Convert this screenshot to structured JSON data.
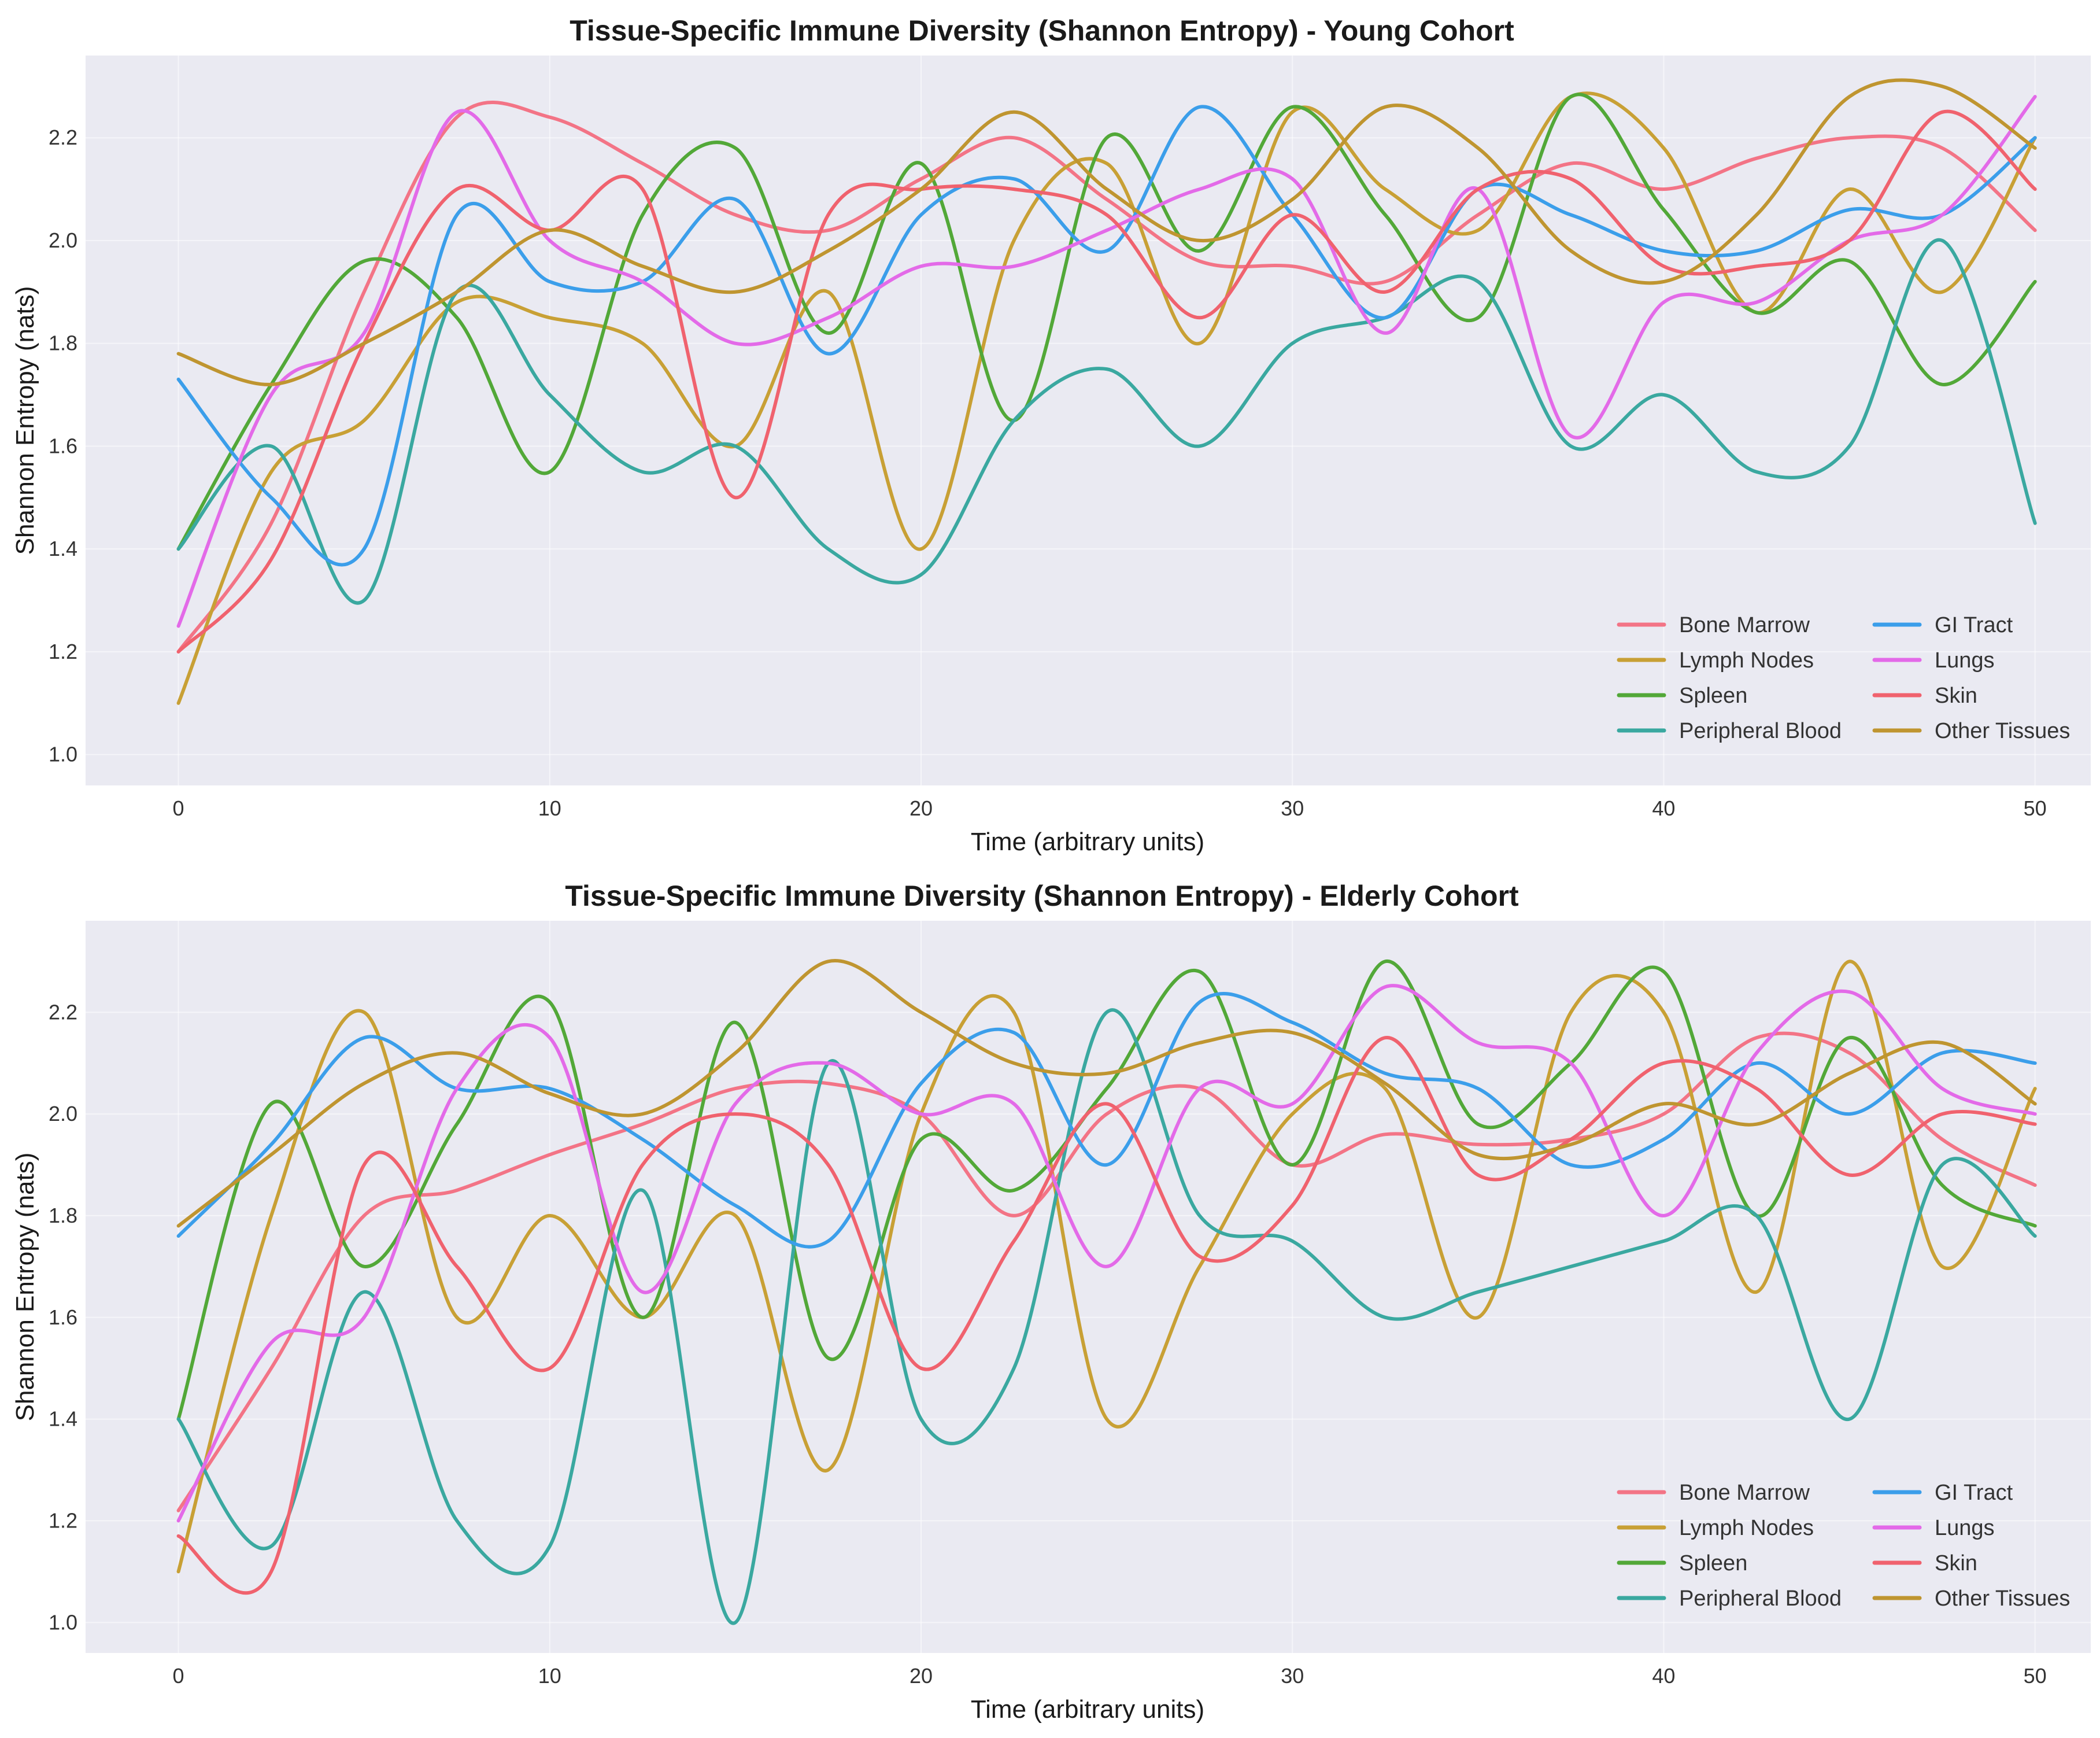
{
  "figure": {
    "plot_background": "#EAEAF2"
  },
  "chart_data": [
    {
      "type": "line",
      "title": "Tissue-Specific Immune Diversity (Shannon Entropy) - Young Cohort",
      "xlabel": "Time (arbitrary units)",
      "ylabel": "Shannon Entropy (nats)",
      "xlim": [
        -2.5,
        51.5
      ],
      "ylim": [
        0.94,
        2.36
      ],
      "xticks": [
        0,
        10,
        20,
        30,
        40,
        50
      ],
      "yticks": [
        1.0,
        1.2,
        1.4,
        1.6,
        1.8,
        2.0,
        2.2
      ],
      "ytick_labels": [
        "1.0",
        "1.2",
        "1.4",
        "1.6",
        "1.8",
        "2.0",
        "2.2"
      ],
      "grid": true,
      "legend_position": "lower-right",
      "legend_columns": 2,
      "x": [
        0,
        2.5,
        5,
        7.5,
        10,
        12.5,
        15,
        17.5,
        20,
        22.5,
        25,
        27.5,
        30,
        32.5,
        35,
        37.5,
        40,
        42.5,
        45,
        47.5,
        50
      ],
      "series": [
        {
          "name": "Bone Marrow",
          "color": "#F37486",
          "values": [
            1.2,
            1.45,
            1.9,
            2.24,
            2.24,
            2.15,
            2.05,
            2.02,
            2.12,
            2.2,
            2.08,
            1.96,
            1.95,
            1.92,
            2.05,
            2.15,
            2.1,
            2.16,
            2.2,
            2.18,
            2.02
          ]
        },
        {
          "name": "Lymph Nodes",
          "color": "#C8A035",
          "values": [
            1.1,
            1.55,
            1.65,
            1.88,
            1.85,
            1.8,
            1.6,
            1.9,
            1.4,
            2.0,
            2.15,
            1.8,
            2.25,
            2.1,
            2.02,
            2.28,
            2.18,
            1.86,
            2.1,
            1.9,
            2.2
          ]
        },
        {
          "name": "Spleen",
          "color": "#52A838",
          "values": [
            1.4,
            1.72,
            1.96,
            1.85,
            1.55,
            2.05,
            2.18,
            1.82,
            2.15,
            1.65,
            2.2,
            1.98,
            2.26,
            2.05,
            1.85,
            2.28,
            2.06,
            1.86,
            1.96,
            1.72,
            1.92
          ]
        },
        {
          "name": "Peripheral Blood",
          "color": "#3AA8A0",
          "values": [
            1.4,
            1.6,
            1.3,
            1.9,
            1.7,
            1.55,
            1.6,
            1.4,
            1.35,
            1.65,
            1.75,
            1.6,
            1.8,
            1.85,
            1.92,
            1.6,
            1.7,
            1.55,
            1.6,
            2.0,
            1.45
          ]
        },
        {
          "name": "GI Tract",
          "color": "#3B9EEA",
          "values": [
            1.73,
            1.5,
            1.4,
            2.05,
            1.92,
            1.92,
            2.08,
            1.78,
            2.05,
            2.12,
            1.98,
            2.26,
            2.05,
            1.85,
            2.1,
            2.05,
            1.98,
            1.98,
            2.06,
            2.05,
            2.2
          ]
        },
        {
          "name": "Lungs",
          "color": "#E36AE8",
          "values": [
            1.25,
            1.7,
            1.82,
            2.25,
            2.0,
            1.92,
            1.8,
            1.85,
            1.95,
            1.95,
            2.02,
            2.1,
            2.12,
            1.82,
            2.1,
            1.62,
            1.88,
            1.88,
            2.0,
            2.05,
            2.28
          ]
        },
        {
          "name": "Skin",
          "color": "#F0626E",
          "values": [
            1.2,
            1.38,
            1.8,
            2.1,
            2.02,
            2.1,
            1.5,
            2.05,
            2.1,
            2.1,
            2.05,
            1.85,
            2.05,
            1.9,
            2.1,
            2.12,
            1.95,
            1.95,
            2.0,
            2.25,
            2.1
          ]
        },
        {
          "name": "Other Tissues",
          "color": "#BF9530",
          "values": [
            1.78,
            1.72,
            1.8,
            1.9,
            2.02,
            1.95,
            1.9,
            1.98,
            2.1,
            2.25,
            2.1,
            2.0,
            2.08,
            2.26,
            2.18,
            1.98,
            1.92,
            2.05,
            2.28,
            2.3,
            2.18
          ]
        }
      ]
    },
    {
      "type": "line",
      "title": "Tissue-Specific Immune Diversity (Shannon Entropy) - Elderly Cohort",
      "xlabel": "Time (arbitrary units)",
      "ylabel": "Shannon Entropy (nats)",
      "xlim": [
        -2.5,
        51.5
      ],
      "ylim": [
        0.94,
        2.38
      ],
      "xticks": [
        0,
        10,
        20,
        30,
        40,
        50
      ],
      "yticks": [
        1.0,
        1.2,
        1.4,
        1.6,
        1.8,
        2.0,
        2.2
      ],
      "ytick_labels": [
        "1.0",
        "1.2",
        "1.4",
        "1.6",
        "1.8",
        "2.0",
        "2.2"
      ],
      "grid": true,
      "legend_position": "lower-right",
      "legend_columns": 2,
      "x": [
        0,
        2.5,
        5,
        7.5,
        10,
        12.5,
        15,
        17.5,
        20,
        22.5,
        25,
        27.5,
        30,
        32.5,
        35,
        37.5,
        40,
        42.5,
        45,
        47.5,
        50
      ],
      "series": [
        {
          "name": "Bone Marrow",
          "color": "#F37486",
          "values": [
            1.22,
            1.5,
            1.8,
            1.85,
            1.92,
            1.98,
            2.05,
            2.06,
            2.0,
            1.8,
            2.0,
            2.05,
            1.9,
            1.96,
            1.94,
            1.95,
            2.0,
            2.15,
            2.12,
            1.95,
            1.86
          ]
        },
        {
          "name": "Lymph Nodes",
          "color": "#C8A035",
          "values": [
            1.1,
            1.8,
            2.2,
            1.6,
            1.8,
            1.6,
            1.8,
            1.3,
            2.0,
            2.2,
            1.4,
            1.7,
            2.0,
            2.05,
            1.6,
            2.2,
            2.2,
            1.65,
            2.3,
            1.7,
            2.05
          ]
        },
        {
          "name": "Spleen",
          "color": "#52A838",
          "values": [
            1.4,
            2.02,
            1.7,
            1.98,
            2.22,
            1.6,
            2.18,
            1.52,
            1.95,
            1.85,
            2.05,
            2.28,
            1.9,
            2.3,
            1.98,
            2.1,
            2.28,
            1.8,
            2.15,
            1.86,
            1.78
          ]
        },
        {
          "name": "Peripheral Blood",
          "color": "#3AA8A0",
          "values": [
            1.4,
            1.15,
            1.65,
            1.2,
            1.15,
            1.85,
            1.0,
            2.1,
            1.4,
            1.5,
            2.2,
            1.8,
            1.75,
            1.6,
            1.65,
            1.7,
            1.75,
            1.8,
            1.4,
            1.9,
            1.76
          ]
        },
        {
          "name": "GI Tract",
          "color": "#3B9EEA",
          "values": [
            1.76,
            1.94,
            2.15,
            2.05,
            2.05,
            1.95,
            1.82,
            1.75,
            2.06,
            2.16,
            1.9,
            2.22,
            2.18,
            2.08,
            2.05,
            1.9,
            1.95,
            2.1,
            2.0,
            2.12,
            2.1
          ]
        },
        {
          "name": "Lungs",
          "color": "#E36AE8",
          "values": [
            1.2,
            1.55,
            1.6,
            2.05,
            2.15,
            1.65,
            2.02,
            2.1,
            2.0,
            2.02,
            1.7,
            2.05,
            2.02,
            2.25,
            2.14,
            2.1,
            1.8,
            2.12,
            2.24,
            2.05,
            2.0
          ]
        },
        {
          "name": "Skin",
          "color": "#F0626E",
          "values": [
            1.17,
            1.1,
            1.9,
            1.7,
            1.5,
            1.9,
            2.0,
            1.9,
            1.5,
            1.75,
            2.02,
            1.72,
            1.82,
            2.15,
            1.88,
            1.95,
            2.1,
            2.05,
            1.88,
            2.0,
            1.98
          ]
        },
        {
          "name": "Other Tissues",
          "color": "#BF9530",
          "values": [
            1.78,
            1.92,
            2.06,
            2.12,
            2.04,
            2.0,
            2.12,
            2.3,
            2.2,
            2.1,
            2.08,
            2.14,
            2.16,
            2.06,
            1.92,
            1.94,
            2.02,
            1.98,
            2.08,
            2.14,
            2.02
          ]
        }
      ]
    }
  ]
}
